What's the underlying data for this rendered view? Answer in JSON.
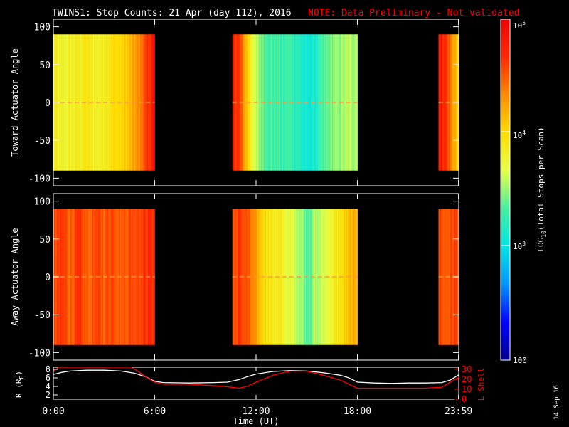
{
  "title": {
    "main": "TWINS1: Stop Counts: 21 Apr (day 112), 2016",
    "note": "NOTE: Data Preliminary - Not validated"
  },
  "colors": {
    "background": "#000000",
    "foreground": "#ffffff",
    "note": "#ff0000",
    "l_shell_line": "#ff0000",
    "r_line": "#ffffff"
  },
  "x_axis": {
    "label": "Time (UT)",
    "ticks": [
      "0:00",
      "6:00",
      "12:00",
      "18:00",
      "23:59"
    ]
  },
  "colorbar": {
    "label_prefix": "LOG",
    "label_subscript": "10",
    "label_suffix": "(Total Stops per Scan)",
    "tick_labels": {
      "t100": "100",
      "t1000_base": "10",
      "t1000_exp": "3",
      "t10000_base": "10",
      "t10000_exp": "4",
      "t100000_base": "10",
      "t100000_exp": "5"
    },
    "stops": [
      "#00008c",
      "#0000ff",
      "#0096ff",
      "#00e6e6",
      "#46f0a0",
      "#e6ff46",
      "#ffdc00",
      "#ff8c00",
      "#ff2800",
      "#f00000"
    ]
  },
  "stamp": "14 Sep 16",
  "chart_data": [
    {
      "type": "heatmap",
      "panel": "top",
      "ylabel": "Toward Actuator Angle",
      "ytick_labels": [
        "100",
        "50",
        "0",
        "-50",
        "-100"
      ],
      "x_unit": "hours UT",
      "x_range": [
        0,
        24
      ],
      "ylim": [
        -110,
        110
      ],
      "data_extent_y": [
        -90,
        90
      ],
      "zscale": "log",
      "zlim": [
        100,
        100000
      ],
      "coverage_hours": [
        [
          0,
          6.0
        ],
        [
          10.6,
          18.0
        ],
        [
          22.8,
          24.0
        ]
      ],
      "profile_log_counts": [
        {
          "t": 0.0,
          "z": 3.85
        },
        {
          "t": 0.5,
          "z": 3.75
        },
        {
          "t": 1.0,
          "z": 3.8
        },
        {
          "t": 1.5,
          "z": 3.85
        },
        {
          "t": 2.0,
          "z": 3.9
        },
        {
          "t": 2.5,
          "z": 3.8
        },
        {
          "t": 3.0,
          "z": 3.9
        },
        {
          "t": 3.5,
          "z": 3.95
        },
        {
          "t": 4.0,
          "z": 4.0
        },
        {
          "t": 4.5,
          "z": 4.1
        },
        {
          "t": 5.0,
          "z": 4.3
        },
        {
          "t": 5.5,
          "z": 4.6
        },
        {
          "t": 6.0,
          "z": 4.8
        },
        {
          "t": 10.6,
          "z": 4.75
        },
        {
          "t": 11.0,
          "z": 4.6
        },
        {
          "t": 11.5,
          "z": 4.05
        },
        {
          "t": 12.0,
          "z": 3.55
        },
        {
          "t": 12.5,
          "z": 3.4
        },
        {
          "t": 13.0,
          "z": 3.3
        },
        {
          "t": 13.5,
          "z": 3.25
        },
        {
          "t": 14.0,
          "z": 3.3
        },
        {
          "t": 14.5,
          "z": 3.2
        },
        {
          "t": 15.0,
          "z": 3.05
        },
        {
          "t": 15.5,
          "z": 3.15
        },
        {
          "t": 16.0,
          "z": 3.3
        },
        {
          "t": 16.5,
          "z": 3.45
        },
        {
          "t": 17.0,
          "z": 3.5
        },
        {
          "t": 17.5,
          "z": 3.55
        },
        {
          "t": 18.0,
          "z": 3.6
        },
        {
          "t": 22.8,
          "z": 4.8
        },
        {
          "t": 23.2,
          "z": 4.7
        },
        {
          "t": 23.6,
          "z": 4.3
        },
        {
          "t": 24.0,
          "z": 4.0
        }
      ]
    },
    {
      "type": "heatmap",
      "panel": "middle",
      "ylabel": "Away Actuator Angle",
      "ytick_labels": [
        "100",
        "50",
        "0",
        "-50",
        "-100"
      ],
      "x_unit": "hours UT",
      "x_range": [
        0,
        24
      ],
      "ylim": [
        -110,
        110
      ],
      "data_extent_y": [
        -90,
        90
      ],
      "zscale": "log",
      "zlim": [
        100,
        100000
      ],
      "coverage_hours": [
        [
          0,
          6.0
        ],
        [
          10.6,
          18.0
        ],
        [
          22.8,
          24.0
        ]
      ],
      "profile_log_counts": [
        {
          "t": 0.0,
          "z": 4.55
        },
        {
          "t": 0.5,
          "z": 4.6
        },
        {
          "t": 1.0,
          "z": 4.5
        },
        {
          "t": 1.5,
          "z": 4.6
        },
        {
          "t": 2.0,
          "z": 4.45
        },
        {
          "t": 2.5,
          "z": 4.55
        },
        {
          "t": 3.0,
          "z": 4.5
        },
        {
          "t": 3.5,
          "z": 4.6
        },
        {
          "t": 4.0,
          "z": 4.5
        },
        {
          "t": 4.5,
          "z": 4.55
        },
        {
          "t": 5.0,
          "z": 4.6
        },
        {
          "t": 5.5,
          "z": 4.65
        },
        {
          "t": 6.0,
          "z": 4.7
        },
        {
          "t": 10.6,
          "z": 4.5
        },
        {
          "t": 11.0,
          "z": 4.6
        },
        {
          "t": 11.5,
          "z": 4.5
        },
        {
          "t": 12.0,
          "z": 4.2
        },
        {
          "t": 12.5,
          "z": 4.0
        },
        {
          "t": 13.0,
          "z": 3.9
        },
        {
          "t": 13.5,
          "z": 3.8
        },
        {
          "t": 14.0,
          "z": 3.7
        },
        {
          "t": 14.5,
          "z": 3.6
        },
        {
          "t": 15.0,
          "z": 3.4
        },
        {
          "t": 15.5,
          "z": 3.5
        },
        {
          "t": 16.0,
          "z": 3.65
        },
        {
          "t": 16.5,
          "z": 3.8
        },
        {
          "t": 17.0,
          "z": 3.95
        },
        {
          "t": 17.5,
          "z": 4.1
        },
        {
          "t": 18.0,
          "z": 4.2
        },
        {
          "t": 22.8,
          "z": 4.6
        },
        {
          "t": 23.2,
          "z": 4.5
        },
        {
          "t": 23.6,
          "z": 4.55
        },
        {
          "t": 24.0,
          "z": 4.6
        }
      ]
    },
    {
      "type": "line",
      "panel": "bottom",
      "ylabel_left": "R (R",
      "ylabel_left_sub": "E",
      "ylabel_left_close": ")",
      "ylabel_right": "L Shell",
      "ytick_labels_left": [
        "8",
        "6",
        "4",
        "2"
      ],
      "ytick_labels_right": [
        "30",
        "20",
        "10",
        "0"
      ],
      "ylim_left": [
        1,
        8.5
      ],
      "ylim_right": [
        0,
        32
      ],
      "x_range": [
        0,
        24
      ],
      "series": [
        {
          "name": "R (RE)",
          "axis": "left",
          "color": "#ffffff",
          "x": [
            0.0,
            0.5,
            1.0,
            2.0,
            3.0,
            4.0,
            4.8,
            5.5,
            6.0,
            6.5,
            8.0,
            9.5,
            10.3,
            11.0,
            11.5,
            12.0,
            13.0,
            14.0,
            15.0,
            16.0,
            17.0,
            17.5,
            18.0,
            19.0,
            20.0,
            21.0,
            22.0,
            23.0,
            23.5,
            24.0
          ],
          "y": [
            6.8,
            7.3,
            7.6,
            7.8,
            7.8,
            7.6,
            7.1,
            6.2,
            5.2,
            4.9,
            4.8,
            4.9,
            5.0,
            5.6,
            6.3,
            6.9,
            7.5,
            7.7,
            7.6,
            7.2,
            6.6,
            6.0,
            5.0,
            4.8,
            4.7,
            4.8,
            4.8,
            4.9,
            5.5,
            6.7
          ]
        },
        {
          "name": "L Shell",
          "axis": "right",
          "color": "#ff0000",
          "x": [
            0.0,
            0.3,
            4.6,
            5.0,
            5.5,
            6.0,
            6.5,
            8.0,
            10.0,
            11.0,
            11.5,
            12.0,
            13.0,
            14.0,
            15.0,
            16.0,
            17.0,
            17.5,
            18.0,
            20.0,
            22.0,
            23.0,
            23.5,
            24.0
          ],
          "y": [
            28,
            32,
            32,
            28,
            22,
            17,
            15,
            15,
            13,
            11,
            13,
            17,
            24,
            28,
            28,
            24,
            19,
            15,
            11,
            11,
            11,
            12,
            17,
            22
          ]
        }
      ]
    }
  ]
}
